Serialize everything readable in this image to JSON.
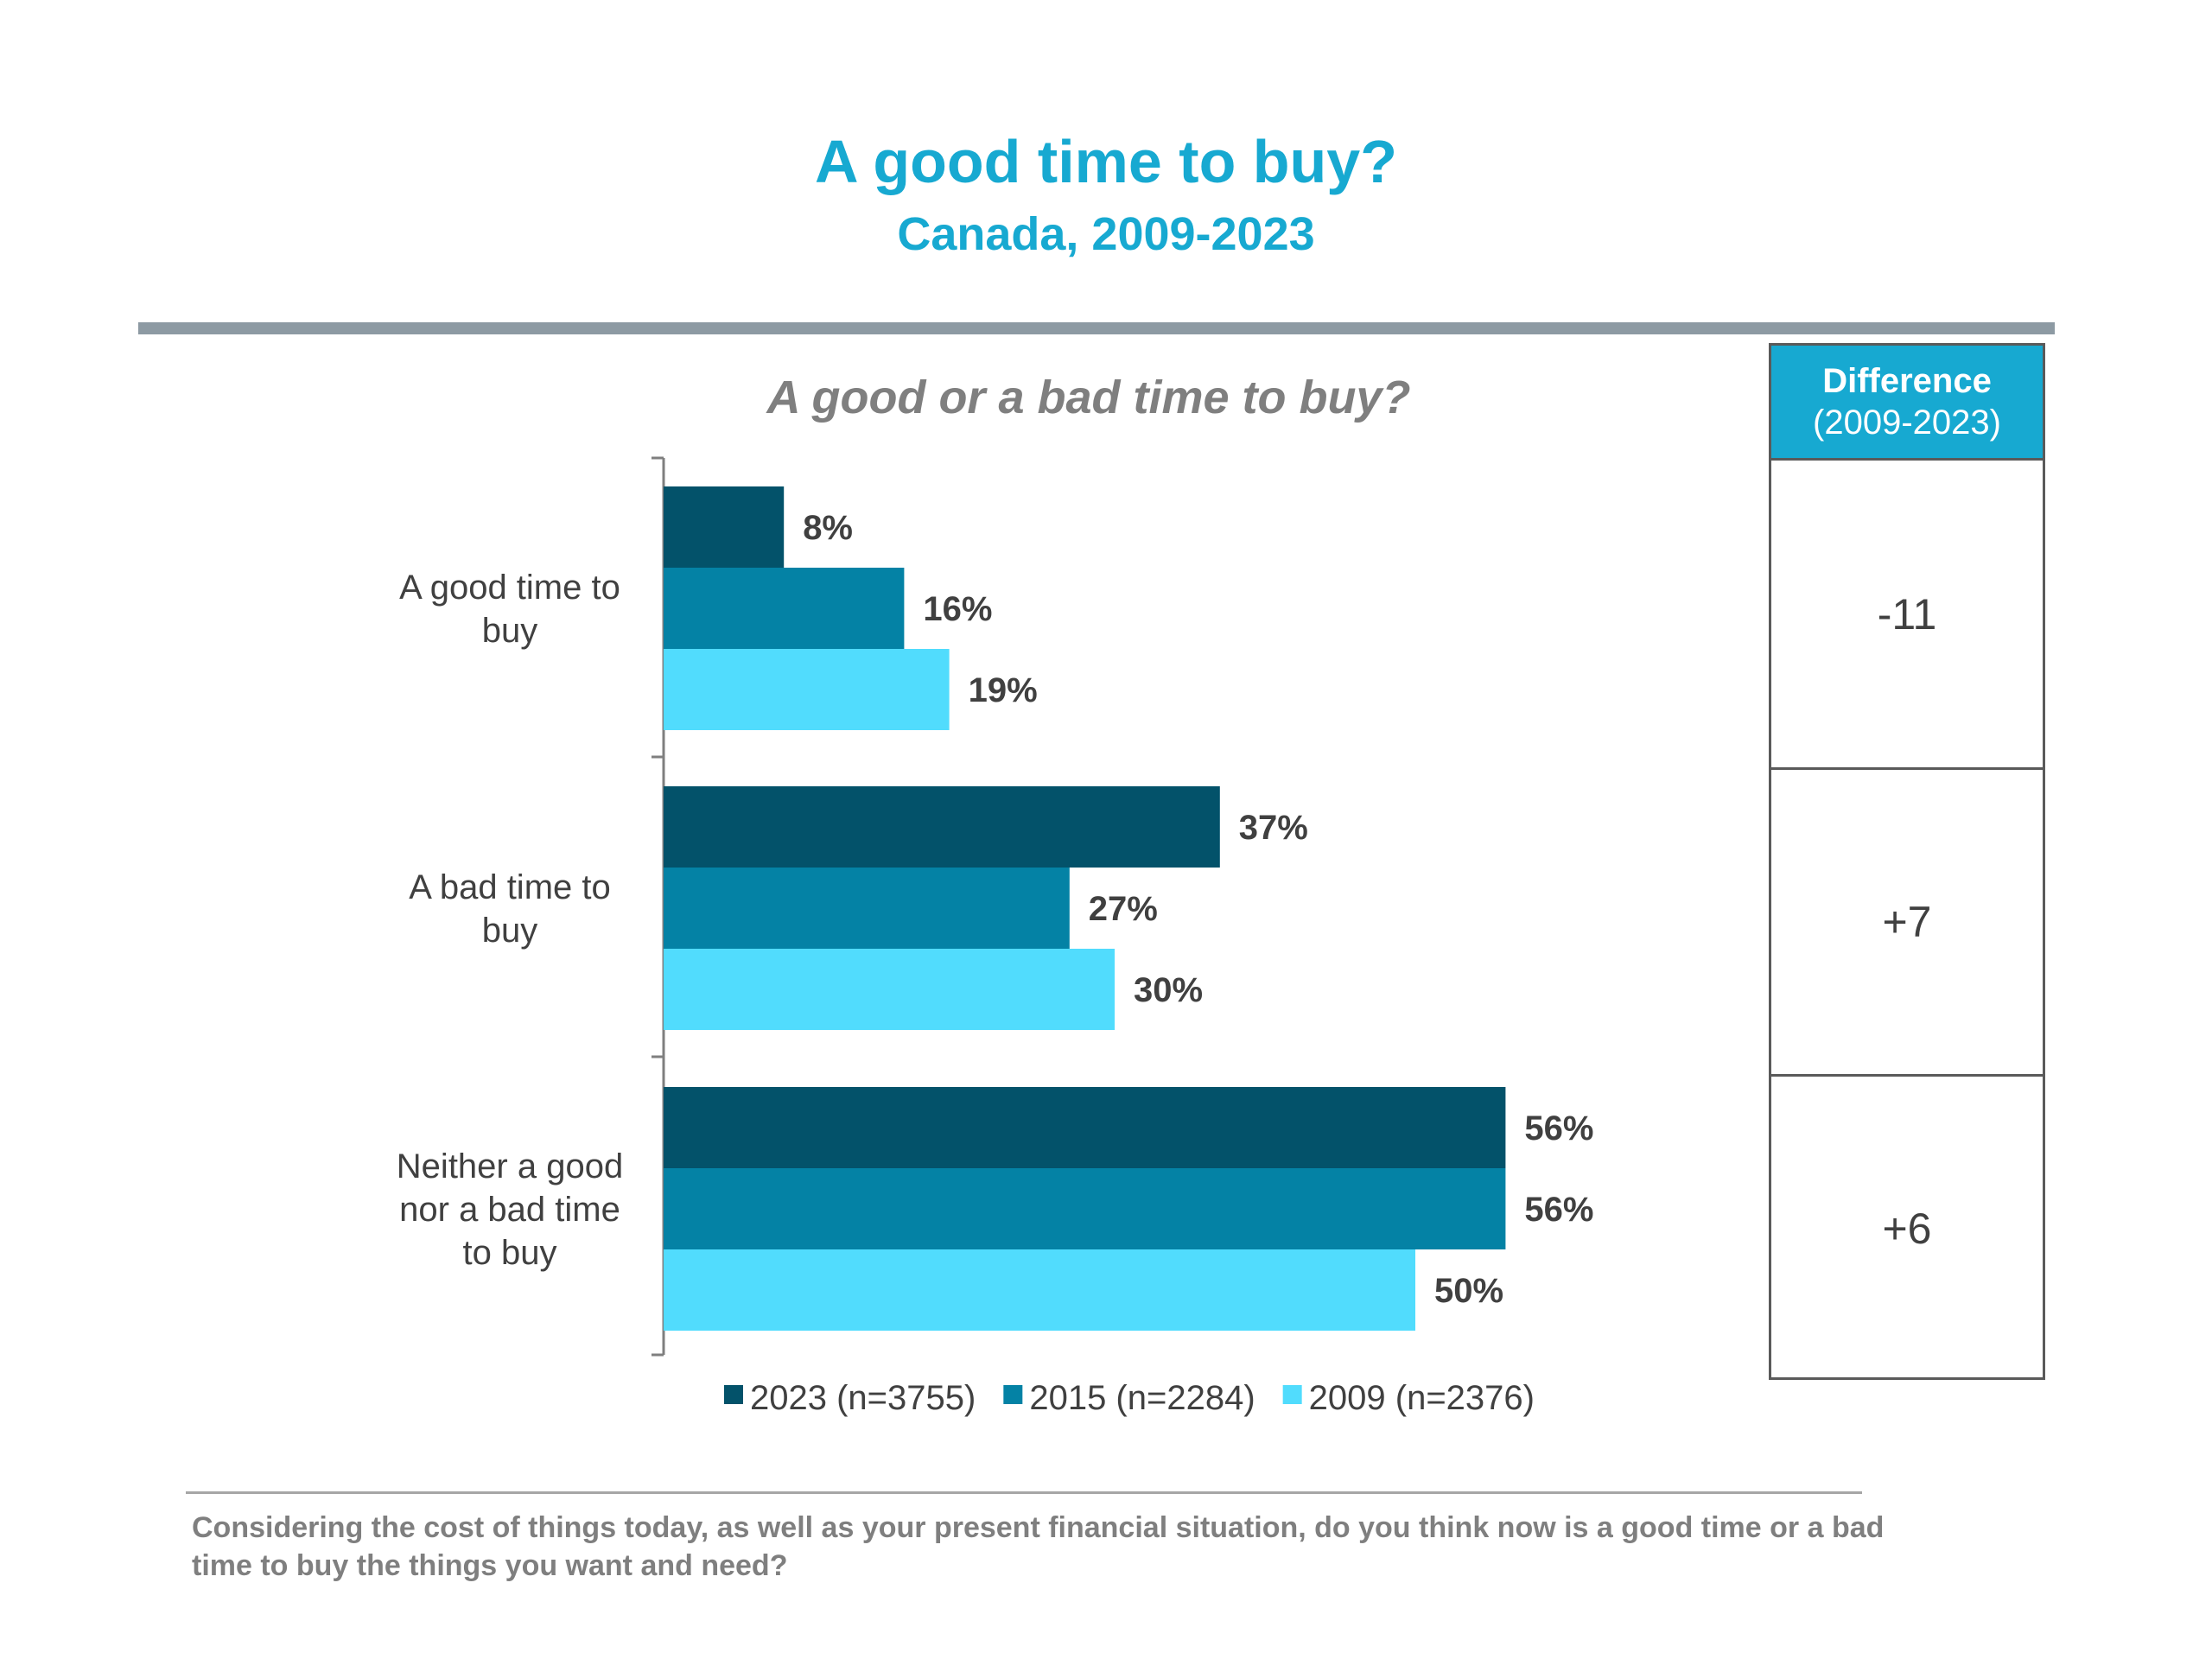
{
  "title": "A good time to buy?",
  "subtitle": "Canada, 2009-2023",
  "chart_data": {
    "type": "bar",
    "orientation": "horizontal",
    "title": "A good or a bad time to buy?",
    "categories": [
      "A good time to buy",
      "A bad time to buy",
      "Neither a good nor a bad time to buy"
    ],
    "series": [
      {
        "name": "2023 (n=3755)",
        "values": [
          8,
          37,
          56
        ],
        "color": "#03526a"
      },
      {
        "name": "2015 (n=2284)",
        "values": [
          16,
          27,
          56
        ],
        "color": "#0482a5"
      },
      {
        "name": "2009 (n=2376)",
        "values": [
          19,
          30,
          50
        ],
        "color": "#51dcfd"
      }
    ],
    "value_suffix": "%",
    "xlim": [
      0,
      100
    ],
    "grid": false,
    "legend": "bottom"
  },
  "difference_table": {
    "header": "Difference",
    "subheader": "(2009-2023)",
    "values": [
      "-11",
      "+7",
      "+6"
    ]
  },
  "footnote": "Considering the cost of things today, as well as your present financial situation, do you think now is a good time or a bad time to buy the things you want and need?"
}
